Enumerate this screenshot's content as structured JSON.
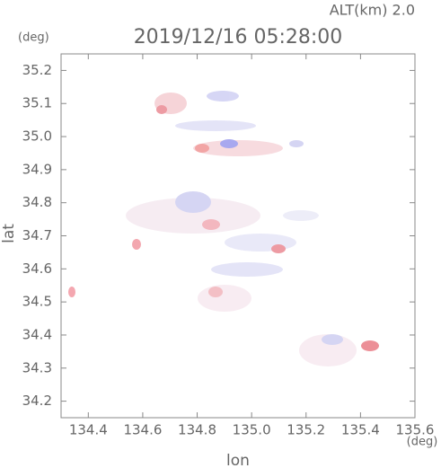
{
  "chart_data": {
    "type": "map",
    "title": "2019/12/16 05:28:00",
    "annotation": "ALT(km) 2.0",
    "xlabel": "lon",
    "ylabel": "lat",
    "xunit": "(deg)",
    "yunit": "(deg)",
    "xlim": [
      134.3,
      135.6
    ],
    "ylim": [
      34.15,
      35.25
    ],
    "xticks": [
      134.4,
      134.6,
      134.8,
      {
        "value": 135.0,
        "label": "135.0"
      },
      135.2,
      135.4,
      135.6
    ],
    "yticks": [
      34.2,
      34.3,
      34.4,
      34.5,
      34.6,
      34.7,
      34.8,
      34.9,
      {
        "value": 35.0,
        "label": "35.0"
      },
      35.1,
      35.2
    ]
  }
}
